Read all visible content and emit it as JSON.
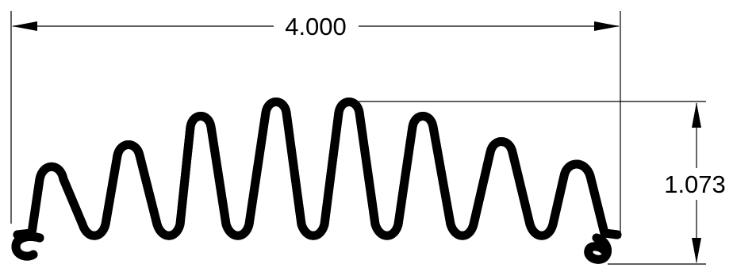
{
  "drawing": {
    "dimensions": {
      "width_label": "4.000",
      "height_label": "1.073"
    },
    "part": {
      "description_icon": "corrugated-seal-profile-icon"
    }
  }
}
